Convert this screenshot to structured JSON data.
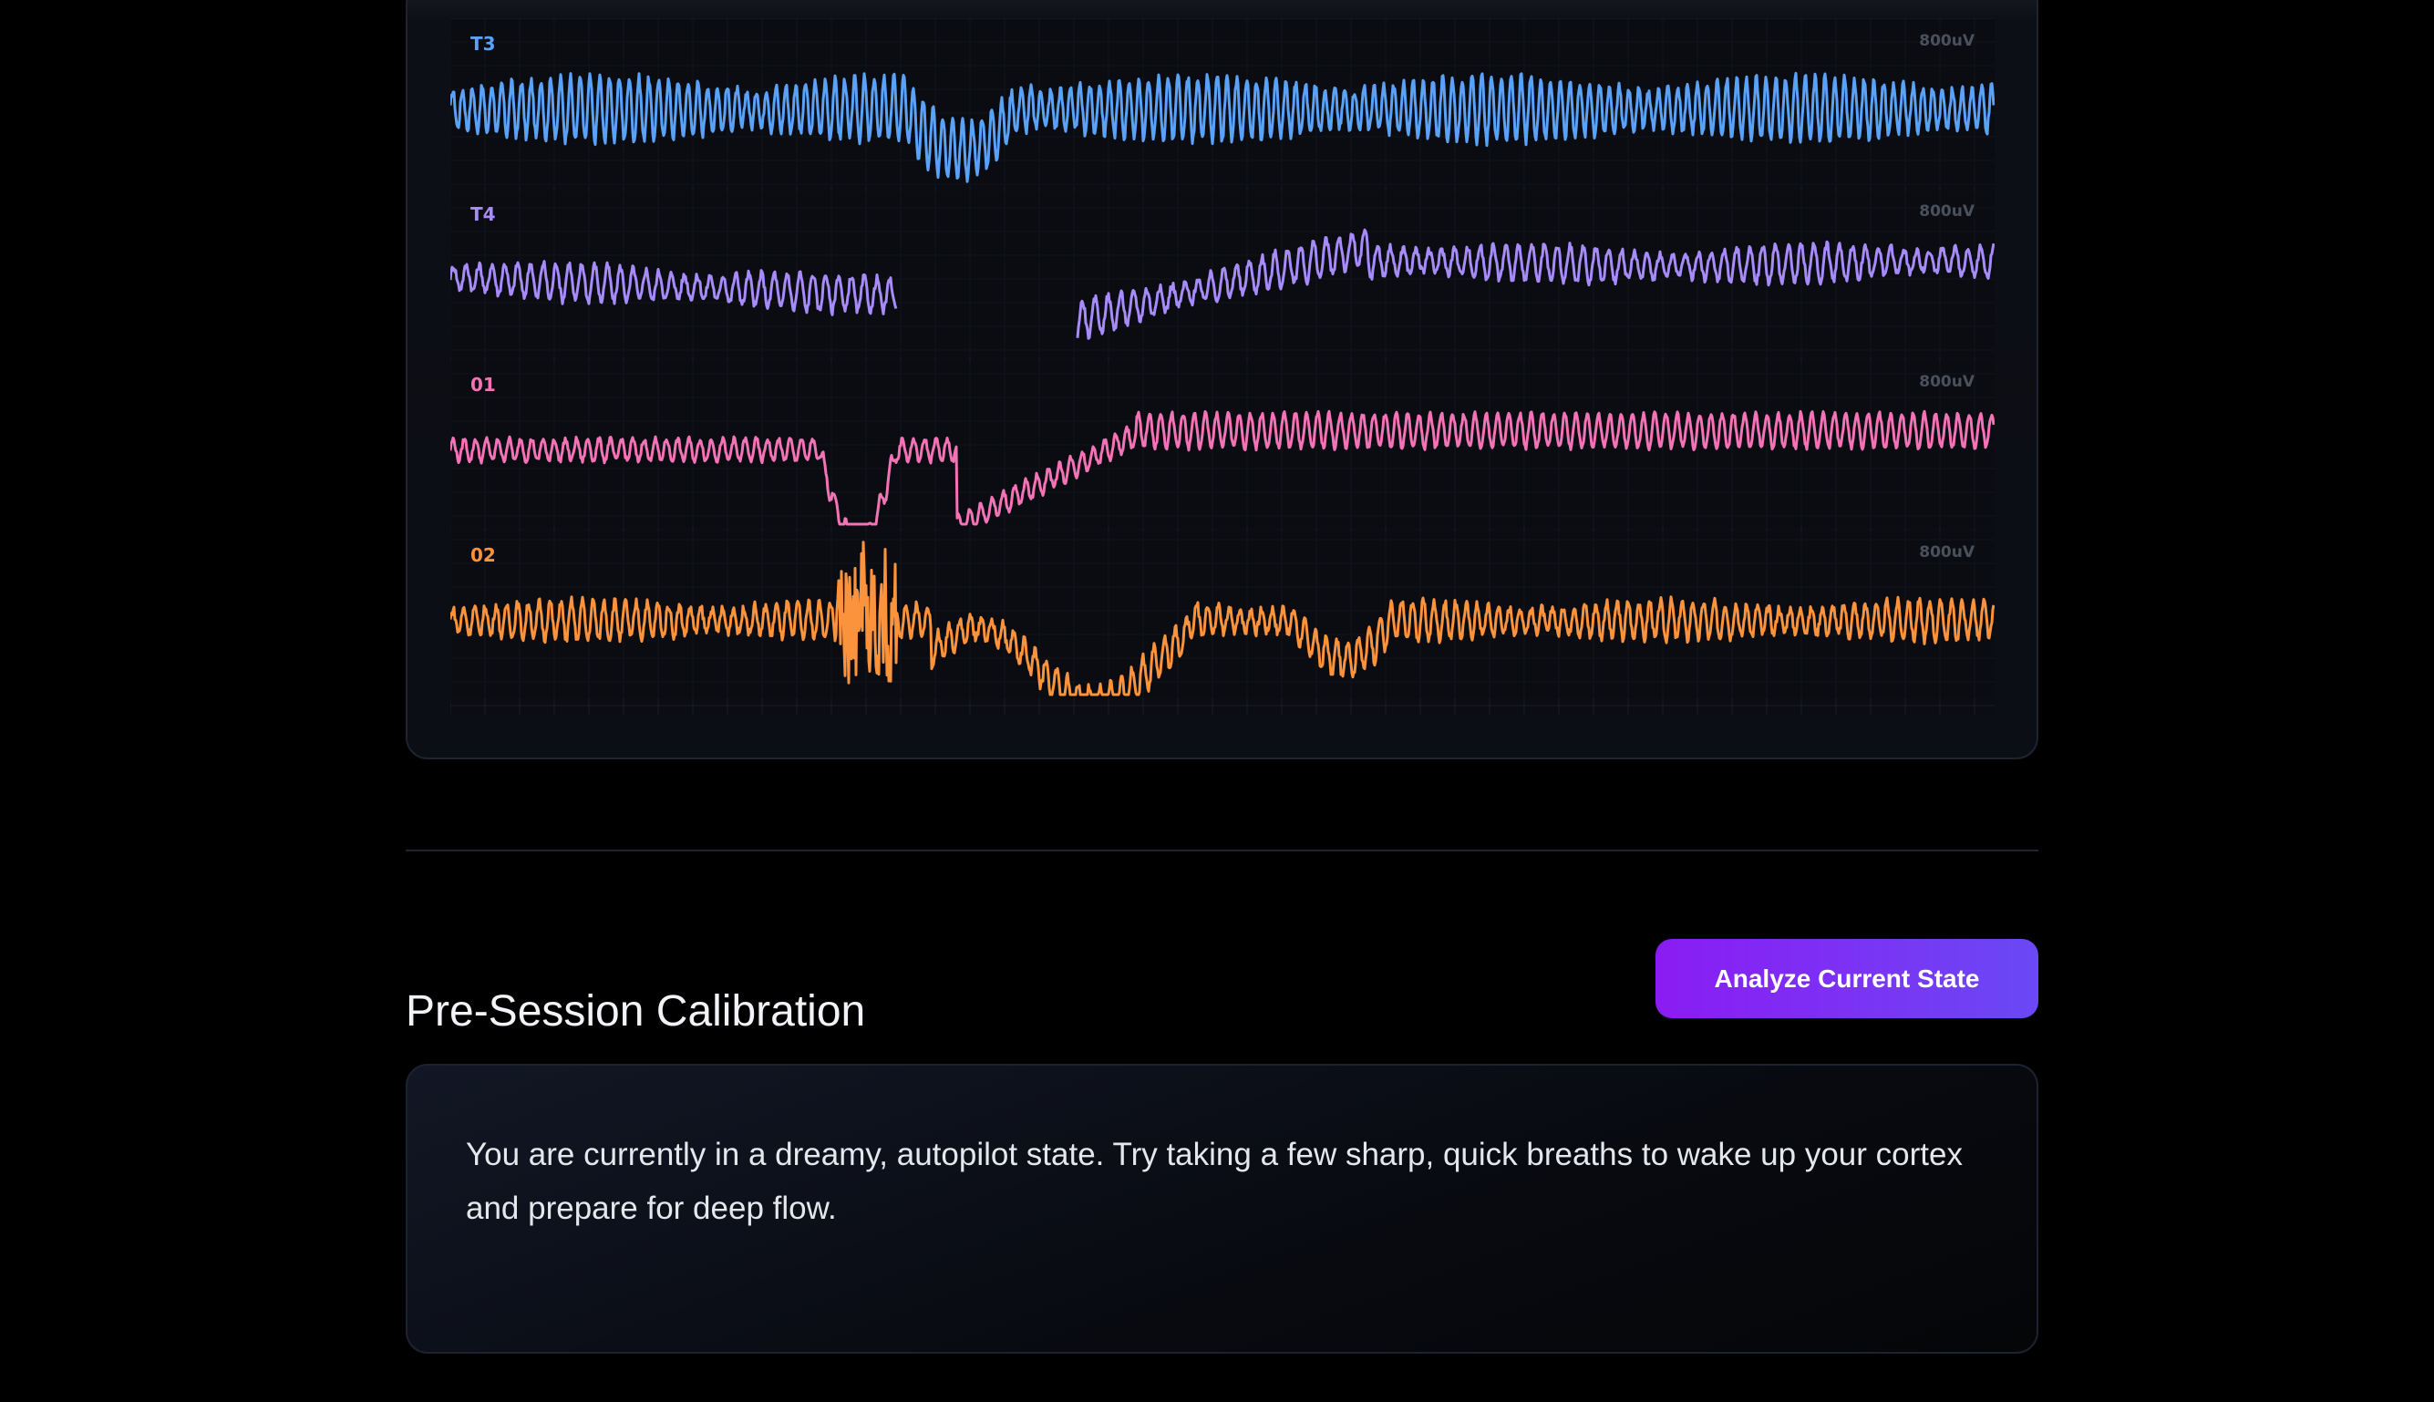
{
  "eeg": {
    "channels": [
      {
        "label": "T3",
        "scale": "800uV",
        "color": "#5aa2f7"
      },
      {
        "label": "T4",
        "scale": "800uV",
        "color": "#a78bfa"
      },
      {
        "label": "01",
        "scale": "800uV",
        "color": "#f472b6"
      },
      {
        "label": "02",
        "scale": "800uV",
        "color": "#fb923c"
      }
    ],
    "background": "#0b0d12",
    "grid_color": "#1a1e27"
  },
  "calibration": {
    "title": "Pre-Session Calibration",
    "analyze_button_label": "Analyze Current State",
    "result_text": "You are currently in a dreamy, autopilot state. Try taking a few sharp, quick breaths to wake up your cortex and prepare for deep flow.",
    "accent_color": "#8a1cf3"
  }
}
